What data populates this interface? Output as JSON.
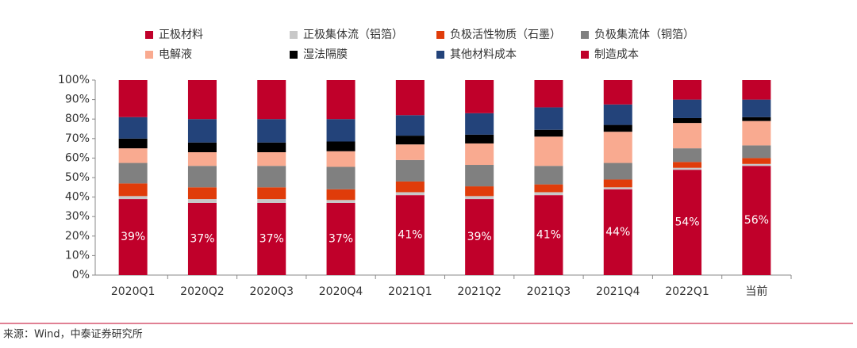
{
  "chart_data": {
    "type": "stacked-bar",
    "categories": [
      "2020Q1",
      "2020Q2",
      "2020Q3",
      "2020Q4",
      "2021Q1",
      "2021Q2",
      "2021Q3",
      "2021Q4",
      "2022Q1",
      "当前"
    ],
    "series": [
      {
        "name": "正极材料",
        "color": "#c0002a",
        "values": [
          39,
          37,
          37,
          37,
          41,
          39,
          41,
          44,
          54,
          56
        ],
        "value_labels": [
          "39%",
          "37%",
          "37%",
          "37%",
          "41%",
          "39%",
          "41%",
          "44%",
          "54%",
          "56%"
        ]
      },
      {
        "name": "正极集体流（铝箔）",
        "color": "#c8c8c8",
        "values": [
          1.5,
          2,
          2,
          1.5,
          1.5,
          1.5,
          1.5,
          1,
          1,
          1
        ]
      },
      {
        "name": "负极活性物质（石墨）",
        "color": "#e03c0a",
        "values": [
          6.5,
          6,
          6,
          5.5,
          5.5,
          5,
          4,
          4,
          3,
          3
        ]
      },
      {
        "name": "负极集流体（铜箔）",
        "color": "#808080",
        "values": [
          10.5,
          11,
          11,
          11.5,
          11,
          11,
          9.5,
          8.5,
          7,
          6.5
        ]
      },
      {
        "name": "电解液",
        "color": "#f9aa90",
        "values": [
          7.5,
          7,
          7,
          8,
          8,
          11,
          15,
          16,
          13,
          12.5
        ]
      },
      {
        "name": "湿法隔膜",
        "color": "#000000",
        "values": [
          5,
          5,
          5,
          5,
          4.5,
          4.5,
          3.5,
          3.5,
          2.5,
          2
        ]
      },
      {
        "name": "其他材料成本",
        "color": "#23437a",
        "values": [
          11,
          12,
          12,
          11.5,
          10.5,
          11,
          11.5,
          10.5,
          9.5,
          9
        ]
      },
      {
        "name": "制造成本",
        "color": "#c0002a",
        "values": [
          19,
          20,
          20,
          20,
          18,
          17,
          14,
          12.5,
          10,
          10
        ]
      }
    ],
    "ylim": [
      0,
      100
    ],
    "yticks": [
      {
        "value": 0,
        "label": "0%"
      },
      {
        "value": 10,
        "label": "10%"
      },
      {
        "value": 20,
        "label": "20%"
      },
      {
        "value": 30,
        "label": "30%"
      },
      {
        "value": 40,
        "label": "40%"
      },
      {
        "value": 50,
        "label": "50%"
      },
      {
        "value": 60,
        "label": "60%"
      },
      {
        "value": 70,
        "label": "70%"
      },
      {
        "value": 80,
        "label": "80%"
      },
      {
        "value": 90,
        "label": "90%"
      },
      {
        "value": 100,
        "label": "100%"
      }
    ],
    "source": "来源：Wind，中泰证券研究所"
  }
}
